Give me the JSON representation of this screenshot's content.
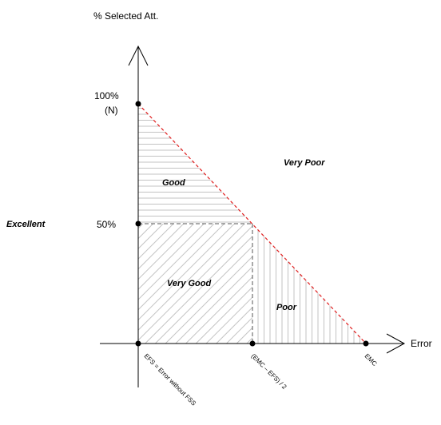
{
  "y_axis": {
    "title": "% Selected Att.",
    "tick_top_line1": "100%",
    "tick_top_line2": "(N)",
    "tick_mid": "50%"
  },
  "x_axis": {
    "title": "Error",
    "tick_left": "EFS = Error without FSS",
    "tick_mid": "(EMC – EFS) / 2",
    "tick_right": "EMC"
  },
  "regions": {
    "excellent": "Excellent",
    "very_good": "Very Good",
    "good": "Good",
    "poor": "Poor",
    "very_poor": "Very Poor"
  },
  "colors": {
    "boundary_line": "#e02020",
    "hatch": "#b4b4b4",
    "axis": "#000000"
  }
}
